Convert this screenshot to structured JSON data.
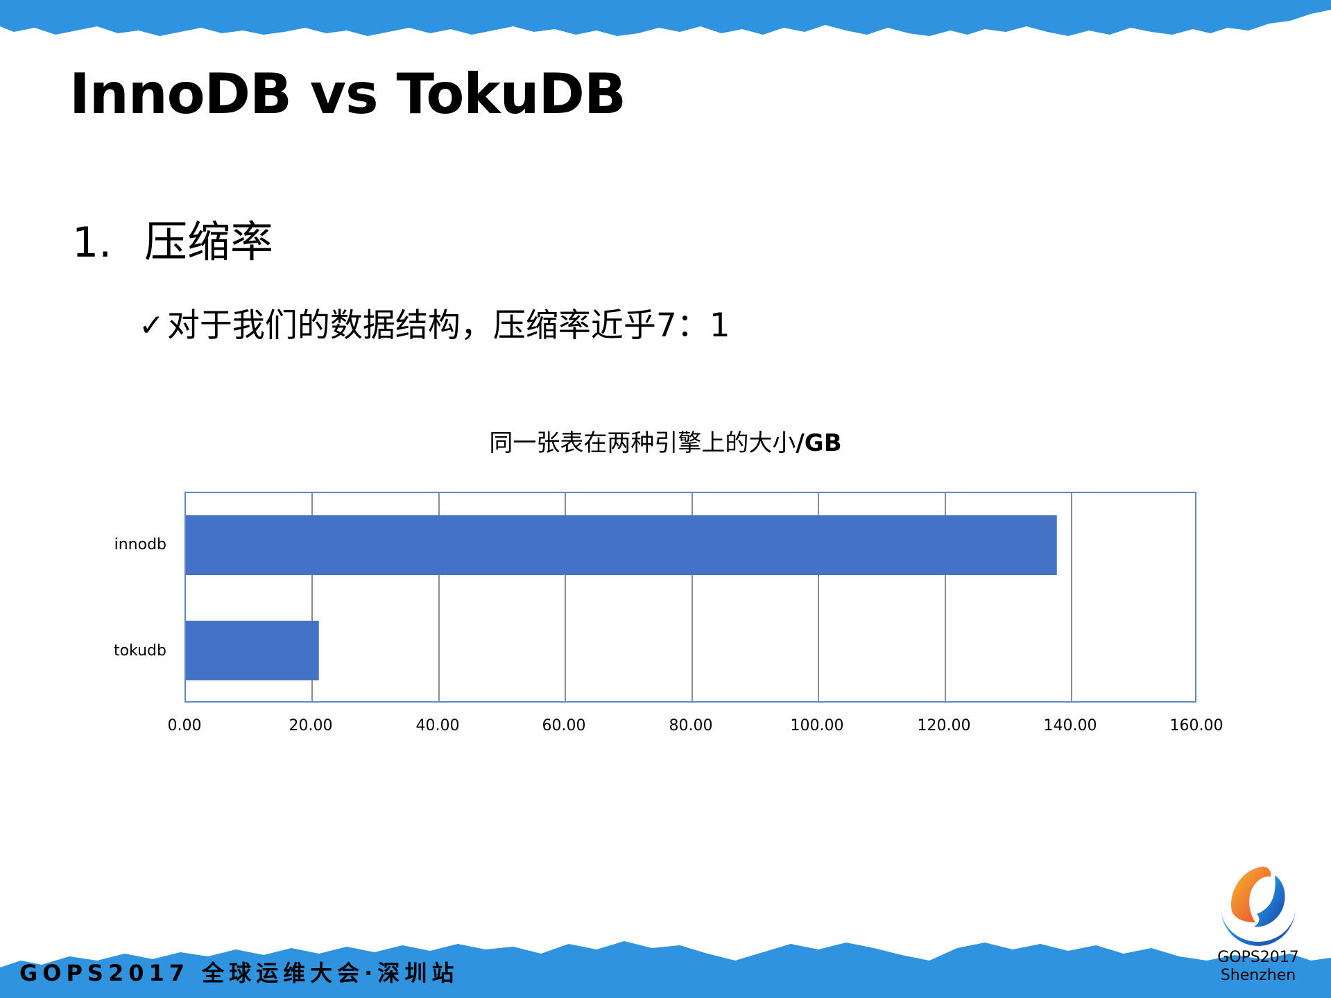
{
  "slide": {
    "title": "InnoDB vs TokuDB",
    "list_number": "1.",
    "list_heading": "压缩率",
    "bullet_icon": "checkmark-icon",
    "bullet_check": "✓",
    "bullet_text": "对于我们的数据结构，压缩率近乎7：1"
  },
  "footer": {
    "text": "GOPS2017 全球运维大会·深圳站",
    "logo_line1": "GOPS2017",
    "logo_line2": "Shenzhen"
  },
  "colors": {
    "brand_blue": "#2f93df",
    "bar": "#4472c4",
    "plot_border": "#5b87c8",
    "gridline": "#8c8c8c"
  },
  "chart_data": {
    "type": "bar",
    "orientation": "horizontal",
    "title": "同一张表在两种引擎上的大小",
    "title_unit": "/GB",
    "categories": [
      "innodb",
      "tokudb"
    ],
    "values": [
      138,
      21
    ],
    "xlabel": "",
    "ylabel": "",
    "xlim": [
      0,
      160
    ],
    "x_ticks": [
      "0.00",
      "20.00",
      "40.00",
      "60.00",
      "80.00",
      "100.00",
      "120.00",
      "140.00",
      "160.00"
    ],
    "grid": true,
    "legend": null
  }
}
